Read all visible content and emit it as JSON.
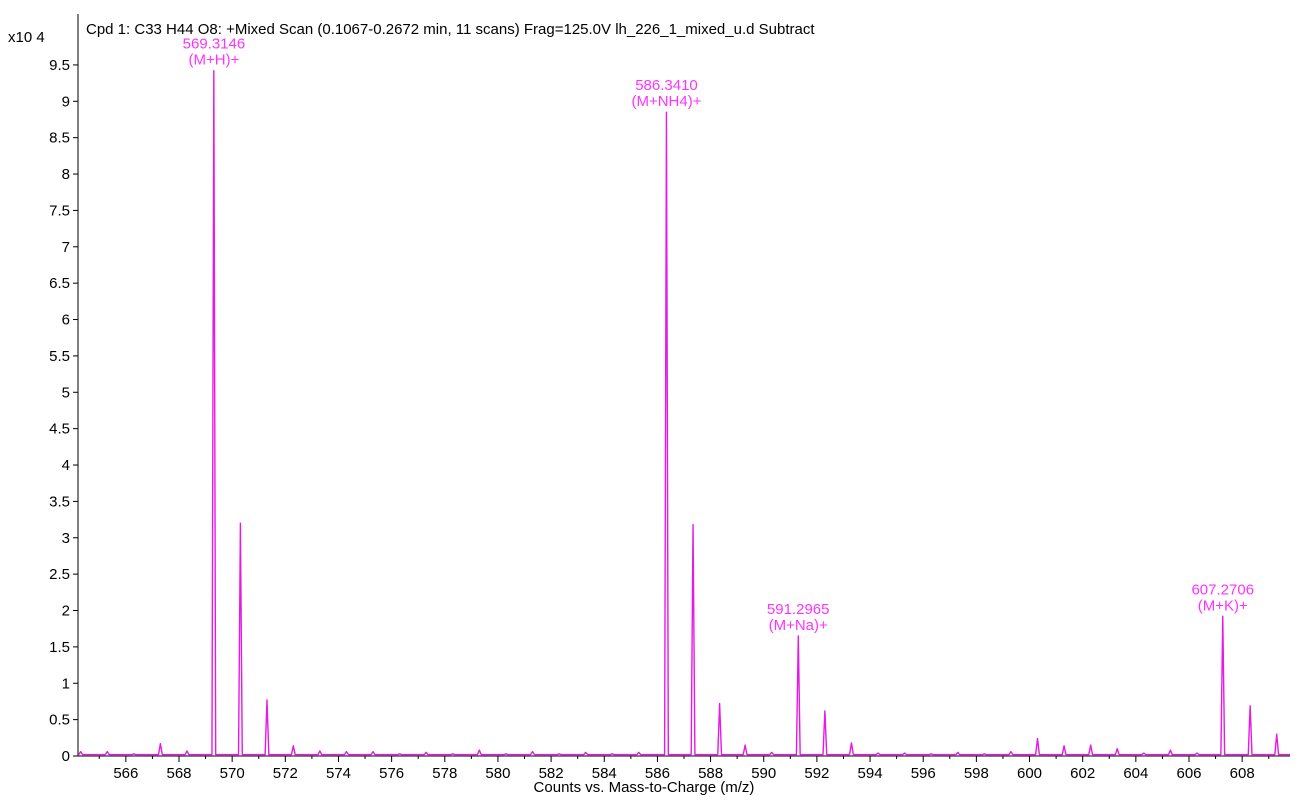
{
  "chart_data": {
    "type": "line",
    "title": "Cpd 1: C33 H44 O8: +Mixed Scan (0.1067-0.2672 min, 11 scans) Frag=125.0V lh_226_1_mixed_u.d  Subtract",
    "y_multiplier": "x10 4",
    "xlabel": "Counts vs. Mass-to-Charge (m/z)",
    "ylabel": "",
    "xlim": [
      564.2,
      609.8
    ],
    "ylim": [
      0,
      10.2
    ],
    "x_ticks": [
      566,
      568,
      570,
      572,
      574,
      576,
      578,
      580,
      582,
      584,
      586,
      588,
      590,
      592,
      594,
      596,
      598,
      600,
      602,
      604,
      606,
      608
    ],
    "x_tick_labels": [
      "566",
      "568",
      "570",
      "572",
      "574",
      "576",
      "578",
      "580",
      "582",
      "584",
      "586",
      "588",
      "590",
      "592",
      "594",
      "596",
      "598",
      "600",
      "602",
      "604",
      "606",
      "608"
    ],
    "y_ticks": [
      0,
      0.5,
      1,
      1.5,
      2,
      2.5,
      3,
      3.5,
      4,
      4.5,
      5,
      5.5,
      6,
      6.5,
      7,
      7.5,
      8,
      8.5,
      9,
      9.5
    ],
    "y_tick_labels": [
      "0",
      "0.5",
      "1",
      "1.5",
      "2",
      "2.5",
      "3",
      "3.5",
      "4",
      "4.5",
      "5",
      "5.5",
      "6",
      "6.5",
      "7",
      "7.5",
      "8",
      "8.5",
      "9",
      "9.5"
    ],
    "grid": false,
    "line_color": "#e619e6",
    "label_color": "#ff33ff",
    "peaks": [
      {
        "x": 564.3,
        "y": 0.06
      },
      {
        "x": 565.3,
        "y": 0.06
      },
      {
        "x": 566.3,
        "y": 0.03
      },
      {
        "x": 567.3,
        "y": 0.17
      },
      {
        "x": 568.3,
        "y": 0.07
      },
      {
        "x": 569.31,
        "y": 9.42
      },
      {
        "x": 570.31,
        "y": 3.2
      },
      {
        "x": 571.31,
        "y": 0.77
      },
      {
        "x": 572.3,
        "y": 0.14
      },
      {
        "x": 573.3,
        "y": 0.07
      },
      {
        "x": 574.3,
        "y": 0.06
      },
      {
        "x": 575.3,
        "y": 0.06
      },
      {
        "x": 576.3,
        "y": 0.03
      },
      {
        "x": 577.3,
        "y": 0.05
      },
      {
        "x": 578.3,
        "y": 0.03
      },
      {
        "x": 579.3,
        "y": 0.08
      },
      {
        "x": 580.3,
        "y": 0.03
      },
      {
        "x": 581.3,
        "y": 0.06
      },
      {
        "x": 582.3,
        "y": 0.03
      },
      {
        "x": 583.3,
        "y": 0.05
      },
      {
        "x": 584.3,
        "y": 0.03
      },
      {
        "x": 585.3,
        "y": 0.05
      },
      {
        "x": 586.34,
        "y": 8.85
      },
      {
        "x": 587.34,
        "y": 3.18
      },
      {
        "x": 588.34,
        "y": 0.72
      },
      {
        "x": 589.3,
        "y": 0.15
      },
      {
        "x": 590.3,
        "y": 0.05
      },
      {
        "x": 591.3,
        "y": 1.65
      },
      {
        "x": 592.3,
        "y": 0.62
      },
      {
        "x": 593.3,
        "y": 0.18
      },
      {
        "x": 594.3,
        "y": 0.04
      },
      {
        "x": 595.3,
        "y": 0.04
      },
      {
        "x": 596.3,
        "y": 0.03
      },
      {
        "x": 597.3,
        "y": 0.05
      },
      {
        "x": 598.3,
        "y": 0.03
      },
      {
        "x": 599.3,
        "y": 0.06
      },
      {
        "x": 600.3,
        "y": 0.24
      },
      {
        "x": 601.3,
        "y": 0.14
      },
      {
        "x": 602.3,
        "y": 0.15
      },
      {
        "x": 603.3,
        "y": 0.1
      },
      {
        "x": 604.3,
        "y": 0.04
      },
      {
        "x": 605.3,
        "y": 0.08
      },
      {
        "x": 606.3,
        "y": 0.04
      },
      {
        "x": 607.27,
        "y": 1.92
      },
      {
        "x": 608.3,
        "y": 0.69
      },
      {
        "x": 609.3,
        "y": 0.3
      }
    ],
    "annotations": [
      {
        "x": 569.3146,
        "y": 9.42,
        "mz": "569.3146",
        "ion": "(M+H)+"
      },
      {
        "x": 586.341,
        "y": 8.85,
        "mz": "586.3410",
        "ion": "(M+NH4)+"
      },
      {
        "x": 591.2965,
        "y": 1.65,
        "mz": "591.2965",
        "ion": "(M+Na)+"
      },
      {
        "x": 607.2706,
        "y": 1.92,
        "mz": "607.2706",
        "ion": "(M+K)+"
      }
    ]
  }
}
